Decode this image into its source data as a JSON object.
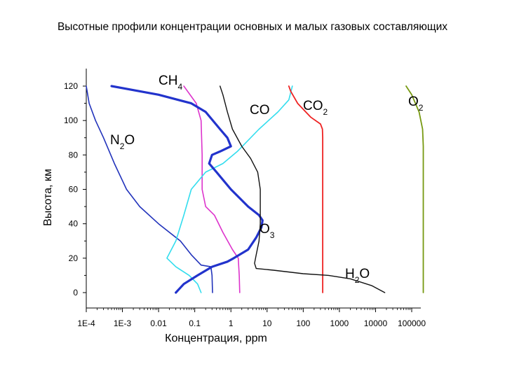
{
  "page": {
    "title": "Высотные профили концентрации основных и малых газовых составляющих"
  },
  "chart_data": {
    "type": "line",
    "x_scale": "log",
    "xlabel": "Концентрация, ppm",
    "ylabel": "Высота, км",
    "xlim": [
      0.0001,
      100000
    ],
    "ylim": [
      0,
      120
    ],
    "x_ticks": [
      0.0001,
      0.001,
      0.01,
      0.1,
      1,
      10,
      100,
      1000,
      10000,
      100000
    ],
    "x_tick_labels": [
      "1E-4",
      "1E-3",
      "0.01",
      "0.1",
      "1",
      "10",
      "100",
      "1000",
      "10000",
      "100000"
    ],
    "y_ticks": [
      0,
      20,
      40,
      60,
      80,
      100,
      120
    ],
    "y_tick_labels": [
      "0",
      "20",
      "40",
      "60",
      "80",
      "100",
      "120"
    ],
    "grid": false,
    "legend": "none",
    "series": [
      {
        "name": "N2O",
        "label_base": "N",
        "label_sub": "2",
        "label_tail": "O",
        "color": "#2233bb",
        "width": 1.6,
        "points": [
          [
            0.31,
            0
          ],
          [
            0.3,
            10
          ],
          [
            0.28,
            15
          ],
          [
            0.15,
            16
          ],
          [
            0.08,
            22
          ],
          [
            0.04,
            30
          ],
          [
            0.01,
            40
          ],
          [
            0.003,
            50
          ],
          [
            0.0013,
            60
          ],
          [
            0.0006,
            75
          ],
          [
            0.0003,
            90
          ],
          [
            0.00018,
            100
          ],
          [
            0.00012,
            110
          ],
          [
            0.0001,
            120
          ]
        ]
      },
      {
        "name": "CH4",
        "label_base": "CH",
        "label_sub": "4",
        "label_tail": "",
        "color": "#dd33cc",
        "width": 1.6,
        "points": [
          [
            1.75,
            0
          ],
          [
            1.7,
            10
          ],
          [
            1.6,
            20
          ],
          [
            1.1,
            25
          ],
          [
            0.6,
            35
          ],
          [
            0.35,
            45
          ],
          [
            0.2,
            50
          ],
          [
            0.16,
            60
          ],
          [
            0.16,
            80
          ],
          [
            0.15,
            100
          ],
          [
            0.11,
            110
          ],
          [
            0.05,
            120
          ]
        ]
      },
      {
        "name": "CO",
        "label_base": "CO",
        "label_sub": "",
        "label_tail": "",
        "color": "#33ddee",
        "width": 1.6,
        "points": [
          [
            0.15,
            0
          ],
          [
            0.12,
            5
          ],
          [
            0.07,
            10
          ],
          [
            0.03,
            15
          ],
          [
            0.017,
            20
          ],
          [
            0.03,
            30
          ],
          [
            0.05,
            45
          ],
          [
            0.08,
            60
          ],
          [
            0.2,
            70
          ],
          [
            0.6,
            75
          ],
          [
            1.5,
            82
          ],
          [
            6,
            95
          ],
          [
            20,
            105
          ],
          [
            40,
            112
          ],
          [
            50,
            120
          ]
        ]
      },
      {
        "name": "CO2",
        "label_base": "CO",
        "label_sub": "2",
        "label_tail": "",
        "color": "#ee2222",
        "width": 1.8,
        "points": [
          [
            345,
            0
          ],
          [
            345,
            60
          ],
          [
            345,
            90
          ],
          [
            340,
            95
          ],
          [
            300,
            98
          ],
          [
            160,
            102
          ],
          [
            70,
            110
          ],
          [
            45,
            117
          ],
          [
            40,
            120
          ]
        ]
      },
      {
        "name": "O2",
        "label_base": "O",
        "label_sub": "2",
        "label_tail": "",
        "color": "#779911",
        "width": 1.8,
        "points": [
          [
            209000,
            0
          ],
          [
            209000,
            60
          ],
          [
            209000,
            85
          ],
          [
            200000,
            95
          ],
          [
            160000,
            105
          ],
          [
            100000,
            115
          ],
          [
            70000,
            120
          ]
        ]
      },
      {
        "name": "O3",
        "label_base": "O",
        "label_sub": "3",
        "label_tail": "",
        "color": "#2233cc",
        "width": 3.2,
        "points": [
          [
            0.03,
            0
          ],
          [
            0.05,
            5
          ],
          [
            0.12,
            10
          ],
          [
            0.3,
            15
          ],
          [
            0.8,
            18
          ],
          [
            1.2,
            20
          ],
          [
            3,
            25
          ],
          [
            5,
            32
          ],
          [
            7,
            38
          ],
          [
            7.5,
            42
          ],
          [
            6,
            45
          ],
          [
            3,
            50
          ],
          [
            1,
            60
          ],
          [
            0.4,
            70
          ],
          [
            0.25,
            75
          ],
          [
            0.3,
            80
          ],
          [
            0.5,
            82
          ],
          [
            1,
            85
          ],
          [
            0.8,
            90
          ],
          [
            0.5,
            95
          ],
          [
            0.2,
            105
          ],
          [
            0.08,
            110
          ],
          [
            0.01,
            115
          ],
          [
            0.0005,
            120
          ]
        ]
      },
      {
        "name": "H2O",
        "label_base": "H",
        "label_sub": "2",
        "label_tail": "O",
        "color": "#111111",
        "width": 1.4,
        "points": [
          [
            18000,
            0
          ],
          [
            8000,
            4
          ],
          [
            2000,
            8
          ],
          [
            500,
            10
          ],
          [
            100,
            11
          ],
          [
            15,
            13
          ],
          [
            5,
            14
          ],
          [
            4.5,
            17
          ],
          [
            5,
            22
          ],
          [
            6,
            30
          ],
          [
            6.5,
            40
          ],
          [
            6.5,
            60
          ],
          [
            5.5,
            70
          ],
          [
            3.5,
            78
          ],
          [
            2,
            85
          ],
          [
            1.1,
            95
          ],
          [
            0.8,
            105
          ],
          [
            0.6,
            115
          ],
          [
            0.5,
            120
          ]
        ]
      }
    ]
  }
}
